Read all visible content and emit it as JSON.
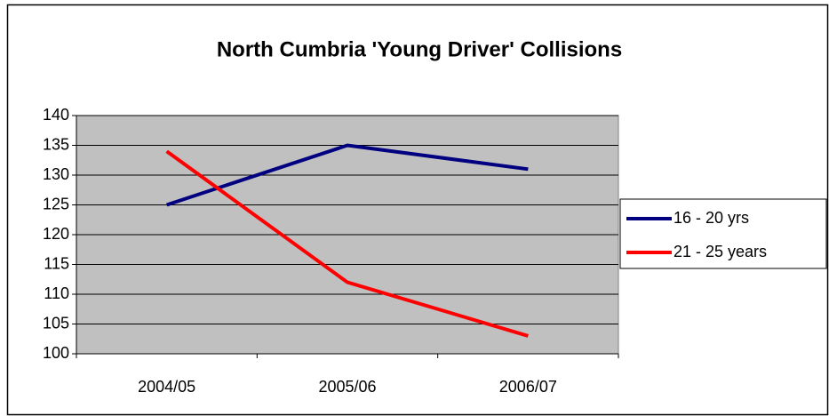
{
  "chart_data": {
    "type": "line",
    "title": "North Cumbria 'Young Driver' Collisions",
    "categories": [
      "2004/05",
      "2005/06",
      "2006/07"
    ],
    "series": [
      {
        "name": "16 - 20 yrs",
        "color": "#000080",
        "values": [
          125,
          135,
          131
        ]
      },
      {
        "name": "21 - 25 years",
        "color": "#ff0000",
        "values": [
          134,
          112,
          103
        ]
      }
    ],
    "ylim": [
      100,
      140
    ],
    "yticks": [
      100,
      105,
      110,
      115,
      120,
      125,
      130,
      135,
      140
    ],
    "grid": true,
    "legend": "right"
  }
}
